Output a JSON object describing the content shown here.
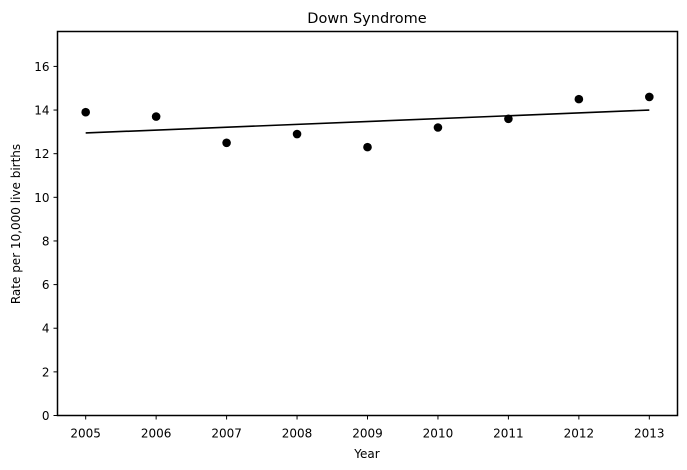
{
  "chart_data": {
    "type": "scatter",
    "title": "Down Syndrome",
    "xlabel": "Year",
    "ylabel": "Rate per 10,000 live births",
    "x": [
      2005,
      2006,
      2007,
      2008,
      2009,
      2010,
      2011,
      2012,
      2013
    ],
    "y": [
      13.9,
      13.7,
      12.5,
      12.9,
      12.3,
      13.2,
      13.6,
      14.5,
      14.6
    ],
    "trend_line": {
      "x": [
        2005,
        2013
      ],
      "y": [
        12.95,
        14.0
      ]
    },
    "xlim": [
      2004.6,
      2013.4
    ],
    "ylim": [
      0,
      17.6
    ],
    "xticks": [
      2005,
      2006,
      2007,
      2008,
      2009,
      2010,
      2011,
      2012,
      2013
    ],
    "yticks": [
      0,
      2,
      4,
      6,
      8,
      10,
      12,
      14,
      16
    ],
    "grid": false,
    "legend": false,
    "colors": {
      "points": "#000000",
      "line": "#000000"
    }
  }
}
